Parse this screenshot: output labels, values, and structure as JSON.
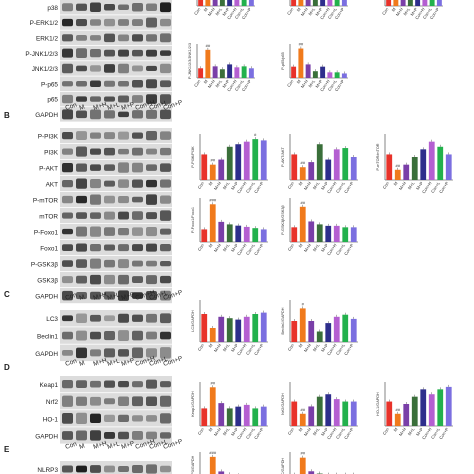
{
  "panels": [
    {
      "letter": "",
      "lanes": [],
      "rows": [
        "p38",
        "P-ERK1/2",
        "ERK1/2",
        "P-JNK1/2/3",
        "JNK1/2/3",
        "P-p65",
        "p65",
        "GAPDH"
      ]
    },
    {
      "letter": "B",
      "lanes": [
        "Con",
        "M",
        "M+H",
        "M+L",
        "M+P",
        "Con+H",
        "Con+L",
        "Con+P"
      ],
      "rows": [
        "P-PI3K",
        "PI3K",
        "P-AKT",
        "AKT",
        "P-mTOR",
        "mTOR",
        "P-Foxo1",
        "Foxo1",
        "P-GSK3β",
        "GSK3β",
        "GAPDH"
      ]
    },
    {
      "letter": "C",
      "lanes": [
        "Con",
        "M",
        "M+H",
        "M+L",
        "M+P",
        "Con+H",
        "Con+L",
        "Con+P"
      ],
      "rows": [
        "LC3",
        "Beclin1",
        "GAPDH"
      ]
    },
    {
      "letter": "D",
      "lanes": [
        "Con",
        "M",
        "M+H",
        "M+L",
        "M+P",
        "Con+H",
        "Con+L",
        "Con+P"
      ],
      "rows": [
        "Keap1",
        "Nrf2",
        "HO-1",
        "GAPDH"
      ]
    },
    {
      "letter": "E",
      "lanes": [
        "Con",
        "M",
        "M+H",
        "M+L",
        "M+P",
        "Con+H",
        "Con+L",
        "Con+P"
      ],
      "rows": [
        "NLRP3"
      ]
    }
  ],
  "chart_data": [
    {
      "type": "bar",
      "panel": "A",
      "ylabel": "",
      "categories": [
        "Con",
        "M",
        "M+H",
        "M+L",
        "M+P",
        "Con+H",
        "Con+L",
        "Con+P"
      ],
      "values": [
        1.3,
        1.2,
        1.0,
        0.9,
        1.05,
        0.95,
        1.0,
        1.1
      ],
      "ylim": [
        0,
        1.6
      ]
    },
    {
      "type": "bar",
      "panel": "A",
      "ylabel": "",
      "categories": [
        "Con",
        "M",
        "M+H",
        "M+L",
        "M+P",
        "Con+H",
        "Con+L",
        "Con+P"
      ],
      "values": [
        1.2,
        1.1,
        1.0,
        0.95,
        1.0,
        1.0,
        1.05,
        1.0
      ],
      "ylim": [
        0,
        1.6
      ]
    },
    {
      "type": "bar",
      "panel": "A",
      "ylabel": "P-ER",
      "categories": [
        "Con",
        "M",
        "M+H",
        "M+L",
        "M+P",
        "Con+H",
        "Con+L",
        "Con+P"
      ],
      "values": [
        1.1,
        1.2,
        1.0,
        0.9,
        1.1,
        1.0,
        1.0,
        1.05
      ],
      "ylim": [
        0,
        1.6
      ]
    },
    {
      "type": "bar",
      "panel": "A",
      "ylabel": "P-JNK1/2/3/JNK1/2/3",
      "categories": [
        "Con",
        "M",
        "M+H",
        "M+L",
        "M+P",
        "Con+H",
        "Con+L",
        "Con+P"
      ],
      "values": [
        1.0,
        2.9,
        1.2,
        0.9,
        1.4,
        1.1,
        1.2,
        1.0
      ],
      "ylim": [
        0,
        3.5
      ],
      "sig": [
        "",
        "##",
        "",
        "",
        "",
        "",
        "",
        ""
      ]
    },
    {
      "type": "bar",
      "panel": "A",
      "ylabel": "P-p65/p65",
      "categories": [
        "Con",
        "M",
        "M+H",
        "M+L",
        "M+P",
        "Con+H",
        "Con+L",
        "Con+P"
      ],
      "values": [
        1.0,
        2.6,
        1.2,
        0.6,
        1.0,
        0.5,
        0.5,
        0.4
      ],
      "ylim": [
        0,
        3.0
      ],
      "sig": [
        "",
        "##",
        "",
        "",
        "",
        "",
        "",
        ""
      ]
    },
    {
      "type": "bar",
      "panel": "B",
      "ylabel": "P-PI3K/PI3K",
      "categories": [
        "Con",
        "M",
        "M+H",
        "M+L",
        "M+P",
        "Con+H",
        "Con+L",
        "Con+P"
      ],
      "values": [
        1.0,
        0.6,
        0.8,
        1.3,
        1.4,
        1.5,
        1.6,
        1.55
      ],
      "ylim": [
        0,
        1.8
      ],
      "sig": [
        "",
        "##",
        "",
        "",
        "",
        "",
        "#",
        ""
      ]
    },
    {
      "type": "bar",
      "panel": "B",
      "ylabel": "P-AKT/AKT",
      "categories": [
        "Con",
        "M",
        "M+H",
        "M+L",
        "M+P",
        "Con+H",
        "Con+L",
        "Con+P"
      ],
      "values": [
        1.0,
        0.5,
        0.7,
        1.4,
        0.8,
        1.2,
        1.25,
        0.9
      ],
      "ylim": [
        0,
        1.8
      ],
      "sig": [
        "",
        "##",
        "",
        "",
        "",
        "",
        "",
        ""
      ]
    },
    {
      "type": "bar",
      "panel": "B",
      "ylabel": "P-mTOR/mTOR",
      "categories": [
        "Con",
        "M",
        "M+H",
        "M+L",
        "M+P",
        "Con+H",
        "Con+L",
        "Con+P"
      ],
      "values": [
        1.0,
        0.4,
        0.6,
        0.9,
        1.2,
        1.5,
        1.3,
        1.0
      ],
      "ylim": [
        0,
        1.8
      ],
      "sig": [
        "",
        "##",
        "",
        "",
        "",
        "",
        "",
        ""
      ]
    },
    {
      "type": "bar",
      "panel": "B",
      "ylabel": "P-Foxo1/Foxo1",
      "categories": [
        "Con",
        "M",
        "M+H",
        "M+L",
        "M+P",
        "Con+H",
        "Con+L",
        "Con+P"
      ],
      "values": [
        1.0,
        3.0,
        1.6,
        1.4,
        1.3,
        1.2,
        1.1,
        1.0
      ],
      "ylim": [
        0,
        3.5
      ],
      "sig": [
        "",
        "###",
        "",
        "",
        "",
        "",
        "",
        ""
      ]
    },
    {
      "type": "bar",
      "panel": "B",
      "ylabel": "P-GSK3β/GSK3β",
      "categories": [
        "Con",
        "M",
        "M+H",
        "M+L",
        "M+P",
        "Con+H",
        "Con+L",
        "Con+P"
      ],
      "values": [
        1.0,
        2.4,
        1.4,
        1.2,
        1.1,
        1.1,
        1.0,
        1.0
      ],
      "ylim": [
        0,
        3.0
      ],
      "sig": [
        "",
        "##",
        "",
        "",
        "",
        "",
        "",
        ""
      ]
    },
    {
      "type": "bar",
      "panel": "C",
      "ylabel": "LC3/GAPDH",
      "categories": [
        "Con",
        "M",
        "M+H",
        "M+L",
        "M+P",
        "Con+H",
        "Con+L",
        "Con+P"
      ],
      "values": [
        1.0,
        0.5,
        0.9,
        0.85,
        0.8,
        0.9,
        1.0,
        1.05
      ],
      "ylim": [
        0,
        1.5
      ],
      "sig": [
        "",
        "",
        "",
        "",
        "",
        "",
        "",
        ""
      ]
    },
    {
      "type": "bar",
      "panel": "C",
      "ylabel": "Beclin1/GAPDH",
      "categories": [
        "Con",
        "M",
        "M+H",
        "M+L",
        "M+P",
        "Con+H",
        "Con+L",
        "Con+P"
      ],
      "values": [
        1.0,
        1.6,
        1.0,
        0.5,
        0.9,
        1.2,
        1.3,
        1.1
      ],
      "ylim": [
        0,
        2.0
      ],
      "sig": [
        "",
        "#",
        "",
        "",
        "",
        "",
        "",
        ""
      ]
    },
    {
      "type": "bar",
      "panel": "D",
      "ylabel": "Keap1/GAPDH",
      "categories": [
        "Con",
        "M",
        "M+H",
        "M+L",
        "M+P",
        "Con+H",
        "Con+L",
        "Con+P"
      ],
      "values": [
        1.0,
        2.2,
        1.3,
        1.0,
        1.1,
        1.2,
        1.0,
        1.1
      ],
      "ylim": [
        0,
        2.5
      ],
      "sig": [
        "",
        "##",
        "",
        "",
        "",
        "",
        "",
        ""
      ]
    },
    {
      "type": "bar",
      "panel": "D",
      "ylabel": "Nrf2/GAPDH",
      "categories": [
        "Con",
        "M",
        "M+H",
        "M+L",
        "M+P",
        "Con+H",
        "Con+L",
        "Con+P"
      ],
      "values": [
        1.0,
        0.5,
        0.8,
        1.2,
        1.3,
        1.1,
        1.0,
        1.0
      ],
      "ylim": [
        0,
        1.8
      ],
      "sig": [
        "",
        "##",
        "",
        "",
        "",
        "",
        "",
        ""
      ]
    },
    {
      "type": "bar",
      "panel": "D",
      "ylabel": "HO-1/GAPDH",
      "categories": [
        "Con",
        "M",
        "M+H",
        "M+L",
        "M+P",
        "Con+H",
        "Con+L",
        "Con+P"
      ],
      "values": [
        1.0,
        0.5,
        0.9,
        1.2,
        1.5,
        1.3,
        1.5,
        1.6
      ],
      "ylim": [
        0,
        1.8
      ],
      "sig": [
        "",
        "##",
        "",
        "",
        "",
        "",
        "",
        ""
      ]
    },
    {
      "type": "bar",
      "panel": "E",
      "ylabel": "NLRP3/GAPDH",
      "categories": [
        "Con",
        "M",
        "M+H",
        "M+L",
        "M+P",
        "Con+H",
        "Con+L",
        "Con+P"
      ],
      "values": [
        1.0,
        3.0,
        1.5,
        1.2,
        1.1,
        1.0,
        1.0,
        1.0
      ],
      "ylim": [
        0,
        3.5
      ],
      "sig": [
        "",
        "###",
        "",
        "",
        "",
        "",
        "",
        ""
      ]
    },
    {
      "type": "bar",
      "panel": "E",
      "ylabel": "ASC/GAPDH",
      "categories": [
        "Con",
        "M",
        "M+H",
        "M+L",
        "M+P",
        "Con+H",
        "Con+L",
        "Con+P"
      ],
      "values": [
        1.0,
        2.5,
        1.3,
        1.1,
        1.0,
        1.0,
        1.0,
        1.0
      ],
      "ylim": [
        0,
        3.0
      ],
      "sig": [
        "",
        "##",
        "",
        "",
        "",
        "",
        "",
        ""
      ]
    }
  ],
  "colors": [
    "#e8322a",
    "#f07a1c",
    "#7a3fa8",
    "#3a6f3a",
    "#2e2e8c",
    "#b45fd1",
    "#22b14c",
    "#7b6fe0"
  ]
}
